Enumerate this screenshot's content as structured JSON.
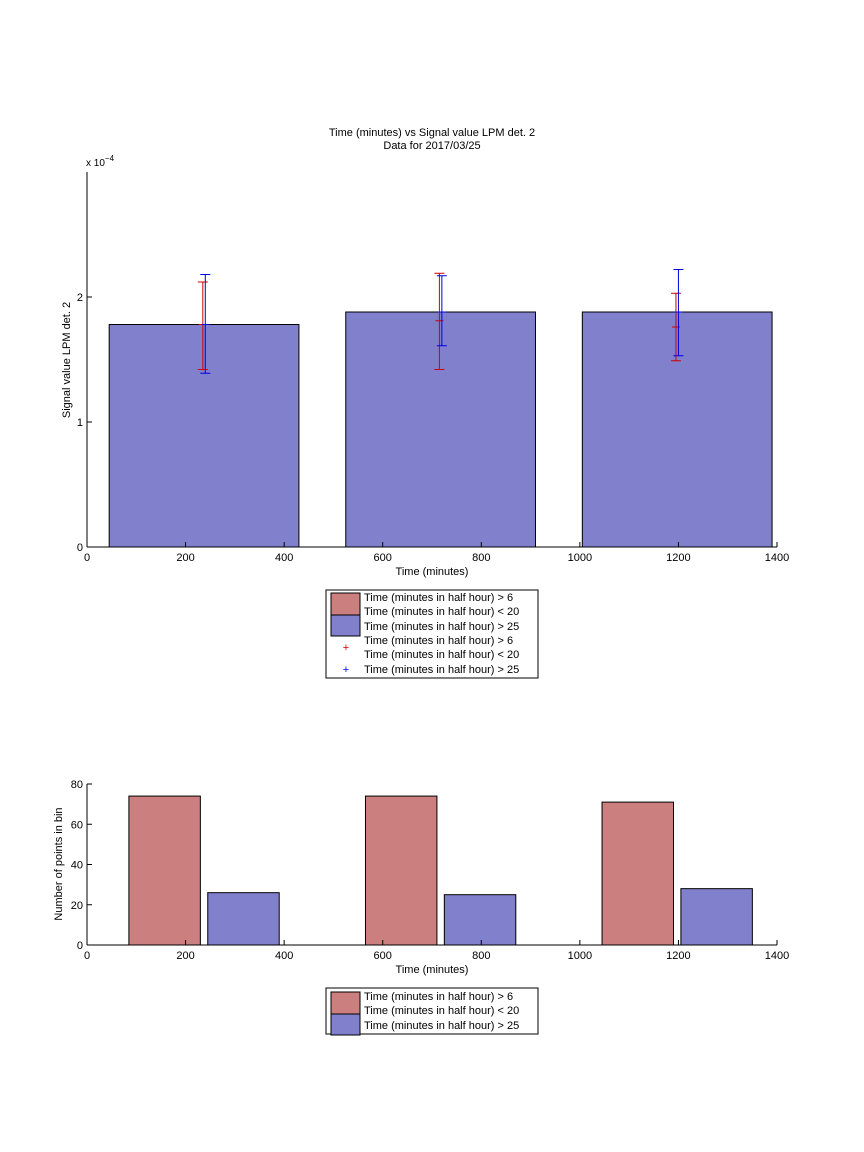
{
  "chart_data": [
    {
      "type": "bar",
      "title": "Time (minutes) vs Signal value LPM det. 2",
      "subtitle": "Data for 2017/03/25",
      "xlabel": "Time (minutes)",
      "ylabel": "Signal value LPM det. 2",
      "y_exponent_label": "x 10",
      "y_exponent_power": "−4",
      "xlim": [
        0,
        1400
      ],
      "ylim": [
        0,
        0.0003
      ],
      "x_ticks": [
        0,
        200,
        400,
        600,
        800,
        1000,
        1200,
        1400
      ],
      "y_ticks": [
        0,
        0.0001,
        0.0002
      ],
      "y_tick_labels": [
        "0",
        "1",
        "2"
      ],
      "grid": false,
      "legend_position": "below-center",
      "legend": [
        "Time (minutes in half hour) > 6\nTime (minutes in half hour) < 20",
        "Time (minutes in half hour) > 25",
        "Time (minutes in half hour) > 6\nTime (minutes in half hour) < 20",
        "Time (minutes in half hour) > 25"
      ],
      "bars": [
        {
          "x_start": 45,
          "x_end": 430,
          "value": 0.000178
        },
        {
          "x_start": 525,
          "x_end": 910,
          "value": 0.000188
        },
        {
          "x_start": 1005,
          "x_end": 1390,
          "value": 0.000188
        }
      ],
      "series": [
        {
          "color": "#d00000",
          "x": [
            235,
            715,
            1195
          ],
          "y": [
            0.000178,
            0.000181,
            0.000176
          ],
          "err_low": [
            0.000142,
            0.000142,
            0.000149
          ],
          "err_high": [
            0.000212,
            0.000219,
            0.000203
          ]
        },
        {
          "color": "#0000e0",
          "x": [
            240,
            720,
            1200
          ],
          "y": [
            0.000178,
            0.000188,
            0.000188
          ],
          "err_low": [
            0.000139,
            0.000161,
            0.000153
          ],
          "err_high": [
            0.000218,
            0.000217,
            0.000222
          ]
        }
      ]
    },
    {
      "type": "bar",
      "xlabel": "Time (minutes)",
      "ylabel": "Number of points in bin",
      "xlim": [
        0,
        1400
      ],
      "ylim": [
        0,
        80
      ],
      "x_ticks": [
        0,
        200,
        400,
        600,
        800,
        1000,
        1200,
        1400
      ],
      "y_ticks": [
        0,
        20,
        40,
        60,
        80
      ],
      "grid": false,
      "legend_position": "below-center",
      "legend": [
        "Time (minutes in half hour) > 6\nTime (minutes in half hour) < 20",
        "Time (minutes in half hour) > 25"
      ],
      "series": [
        {
          "x_start": [
            85,
            565,
            1045
          ],
          "x_end": [
            230,
            710,
            1190
          ],
          "values": [
            74,
            74,
            71
          ]
        },
        {
          "x_start": [
            245,
            725,
            1205
          ],
          "x_end": [
            390,
            870,
            1350
          ],
          "values": [
            26,
            25,
            28
          ]
        }
      ]
    }
  ],
  "colors": {
    "bar_red": "#cb7f7e",
    "bar_blue": "#8180cc",
    "err_red": "#d00000",
    "err_blue": "#0000e0"
  }
}
